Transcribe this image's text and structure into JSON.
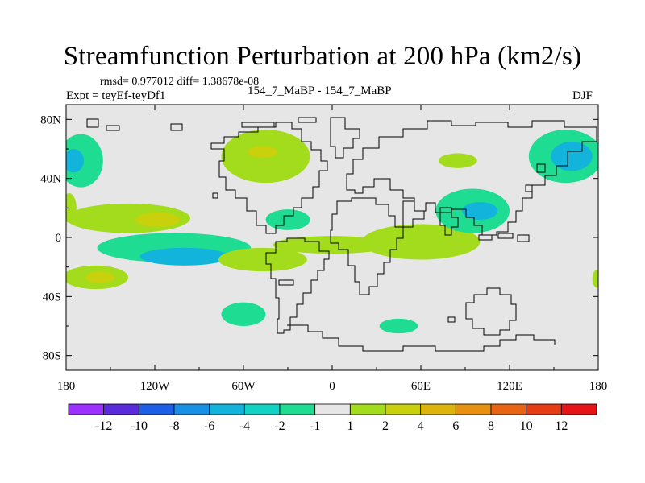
{
  "chart_data": {
    "type": "heatmap",
    "title": "Streamfunction Perturbation at 200 hPa (km2/s)",
    "stats_line": "rmsd= 0.977012 diff= 1.38678e-08",
    "left_label": "Expt = teyEf-teyDf1",
    "center_label": "154_7_MaBP - 154_7_MaBP",
    "right_label": "DJF",
    "xlim": [
      -180,
      180
    ],
    "ylim": [
      -90,
      90
    ],
    "x_ticks": [
      {
        "value": -180,
        "label": "180"
      },
      {
        "value": -120,
        "label": "120W"
      },
      {
        "value": -60,
        "label": "60W"
      },
      {
        "value": 0,
        "label": "0"
      },
      {
        "value": 60,
        "label": "60E"
      },
      {
        "value": 120,
        "label": "120E"
      },
      {
        "value": 180,
        "label": "180"
      }
    ],
    "y_ticks": [
      {
        "value": 80,
        "label": "80N"
      },
      {
        "value": 40,
        "label": "40N"
      },
      {
        "value": 0,
        "label": "0"
      },
      {
        "value": -40,
        "label": "40S"
      },
      {
        "value": -80,
        "label": "80S"
      }
    ],
    "colorbar": {
      "labels": [
        "-12",
        "-10",
        "-8",
        "-6",
        "-4",
        "-2",
        "-1",
        "1",
        "2",
        "4",
        "6",
        "8",
        "10",
        "12"
      ],
      "colors": [
        "#9b30ff",
        "#5a2bdb",
        "#1e5ee6",
        "#1a8fe6",
        "#12b4dc",
        "#11d2c3",
        "#1edc91",
        "#e6e6e6",
        "#a3dc1c",
        "#c9d00c",
        "#dcb40c",
        "#e6910f",
        "#e66414",
        "#e63c14",
        "#e61414"
      ]
    },
    "contour_fills": [
      {
        "name": "pac-south-60",
        "level": "-4",
        "lon": -107,
        "lat": -7,
        "rlon": 52,
        "rlat": 10,
        "color": "#1edc91"
      },
      {
        "name": "pac-south-60-core",
        "level": "-6",
        "lon": -100,
        "lat": -13,
        "rlon": 30,
        "rlat": 6,
        "color": "#12b4dc"
      },
      {
        "name": "pac-north-tropics",
        "level": "2",
        "lon": -138,
        "lat": 13,
        "rlon": 42,
        "rlat": 10,
        "color": "#a3dc1c"
      },
      {
        "name": "pac-north-tropics-core",
        "level": "4",
        "lon": -118,
        "lat": 12,
        "rlon": 15,
        "rlat": 5,
        "color": "#c9d00c"
      },
      {
        "name": "pac-south-30",
        "level": "2",
        "lon": -160,
        "lat": -27,
        "rlon": 22,
        "rlat": 8,
        "color": "#a3dc1c"
      },
      {
        "name": "pac-south-30-core",
        "level": "4",
        "lon": -157,
        "lat": -27,
        "rlon": 10,
        "rlat": 4,
        "color": "#c9d00c"
      },
      {
        "name": "namer-north",
        "level": "2",
        "lon": -45,
        "lat": 55,
        "rlon": 30,
        "rlat": 18,
        "color": "#a3dc1c"
      },
      {
        "name": "namer-north-core",
        "level": "4",
        "lon": -47,
        "lat": 58,
        "rlon": 10,
        "rlat": 4,
        "color": "#c9d00c"
      },
      {
        "name": "atl-subtrop",
        "level": "-2",
        "lon": -30,
        "lat": 12,
        "rlon": 15,
        "rlat": 7,
        "color": "#1edc91"
      },
      {
        "name": "east-hemis-tropics",
        "level": "2",
        "lon": 60,
        "lat": -3,
        "rlon": 40,
        "rlat": 12,
        "color": "#a3dc1c"
      },
      {
        "name": "east-hemis-tropics-west",
        "level": "2",
        "lon": 0,
        "lat": -5,
        "rlon": 40,
        "rlat": 6,
        "color": "#a3dc1c"
      },
      {
        "name": "asia-subtrop",
        "level": "-4",
        "lon": 95,
        "lat": 18,
        "rlon": 25,
        "rlat": 15,
        "color": "#1edc91"
      },
      {
        "name": "asia-subtrop-core",
        "level": "-6",
        "lon": 100,
        "lat": 18,
        "rlon": 12,
        "rlat": 6,
        "color": "#12b4dc"
      },
      {
        "name": "npac-north",
        "level": "-4",
        "lon": 158,
        "lat": 55,
        "rlon": 25,
        "rlat": 18,
        "color": "#1edc91"
      },
      {
        "name": "npac-north-core",
        "level": "-6",
        "lon": 162,
        "lat": 55,
        "rlon": 14,
        "rlat": 10,
        "color": "#12b4dc"
      },
      {
        "name": "wpac-north",
        "level": "-2",
        "lon": -170,
        "lat": 52,
        "rlon": 15,
        "rlat": 18,
        "color": "#1edc91"
      },
      {
        "name": "wpac-north-core",
        "level": "-4",
        "lon": -175,
        "lat": 52,
        "rlon": 7,
        "rlat": 8,
        "color": "#12b4dc"
      },
      {
        "name": "asia-north-small",
        "level": "2",
        "lon": 85,
        "lat": 52,
        "rlon": 13,
        "rlat": 5,
        "color": "#a3dc1c"
      },
      {
        "name": "pac-east-south",
        "level": "-2",
        "lon": -60,
        "lat": -52,
        "rlon": 15,
        "rlat": 8,
        "color": "#1edc91"
      },
      {
        "name": "atl-south",
        "level": "-2",
        "lon": 45,
        "lat": -60,
        "rlon": 13,
        "rlat": 5,
        "color": "#1edc91"
      },
      {
        "name": "ind-south",
        "level": "2",
        "lon": -47,
        "lat": -15,
        "rlon": 30,
        "rlat": 8,
        "color": "#a3dc1c"
      },
      {
        "name": "pac-west-edge-n",
        "level": "2",
        "lon": -178,
        "lat": 20,
        "rlon": 5,
        "rlat": 10,
        "color": "#a3dc1c"
      },
      {
        "name": "pac-east-edge-s",
        "level": "2",
        "lon": 179,
        "lat": -28,
        "rlon": 3,
        "rlat": 6,
        "color": "#a3dc1c"
      }
    ]
  }
}
